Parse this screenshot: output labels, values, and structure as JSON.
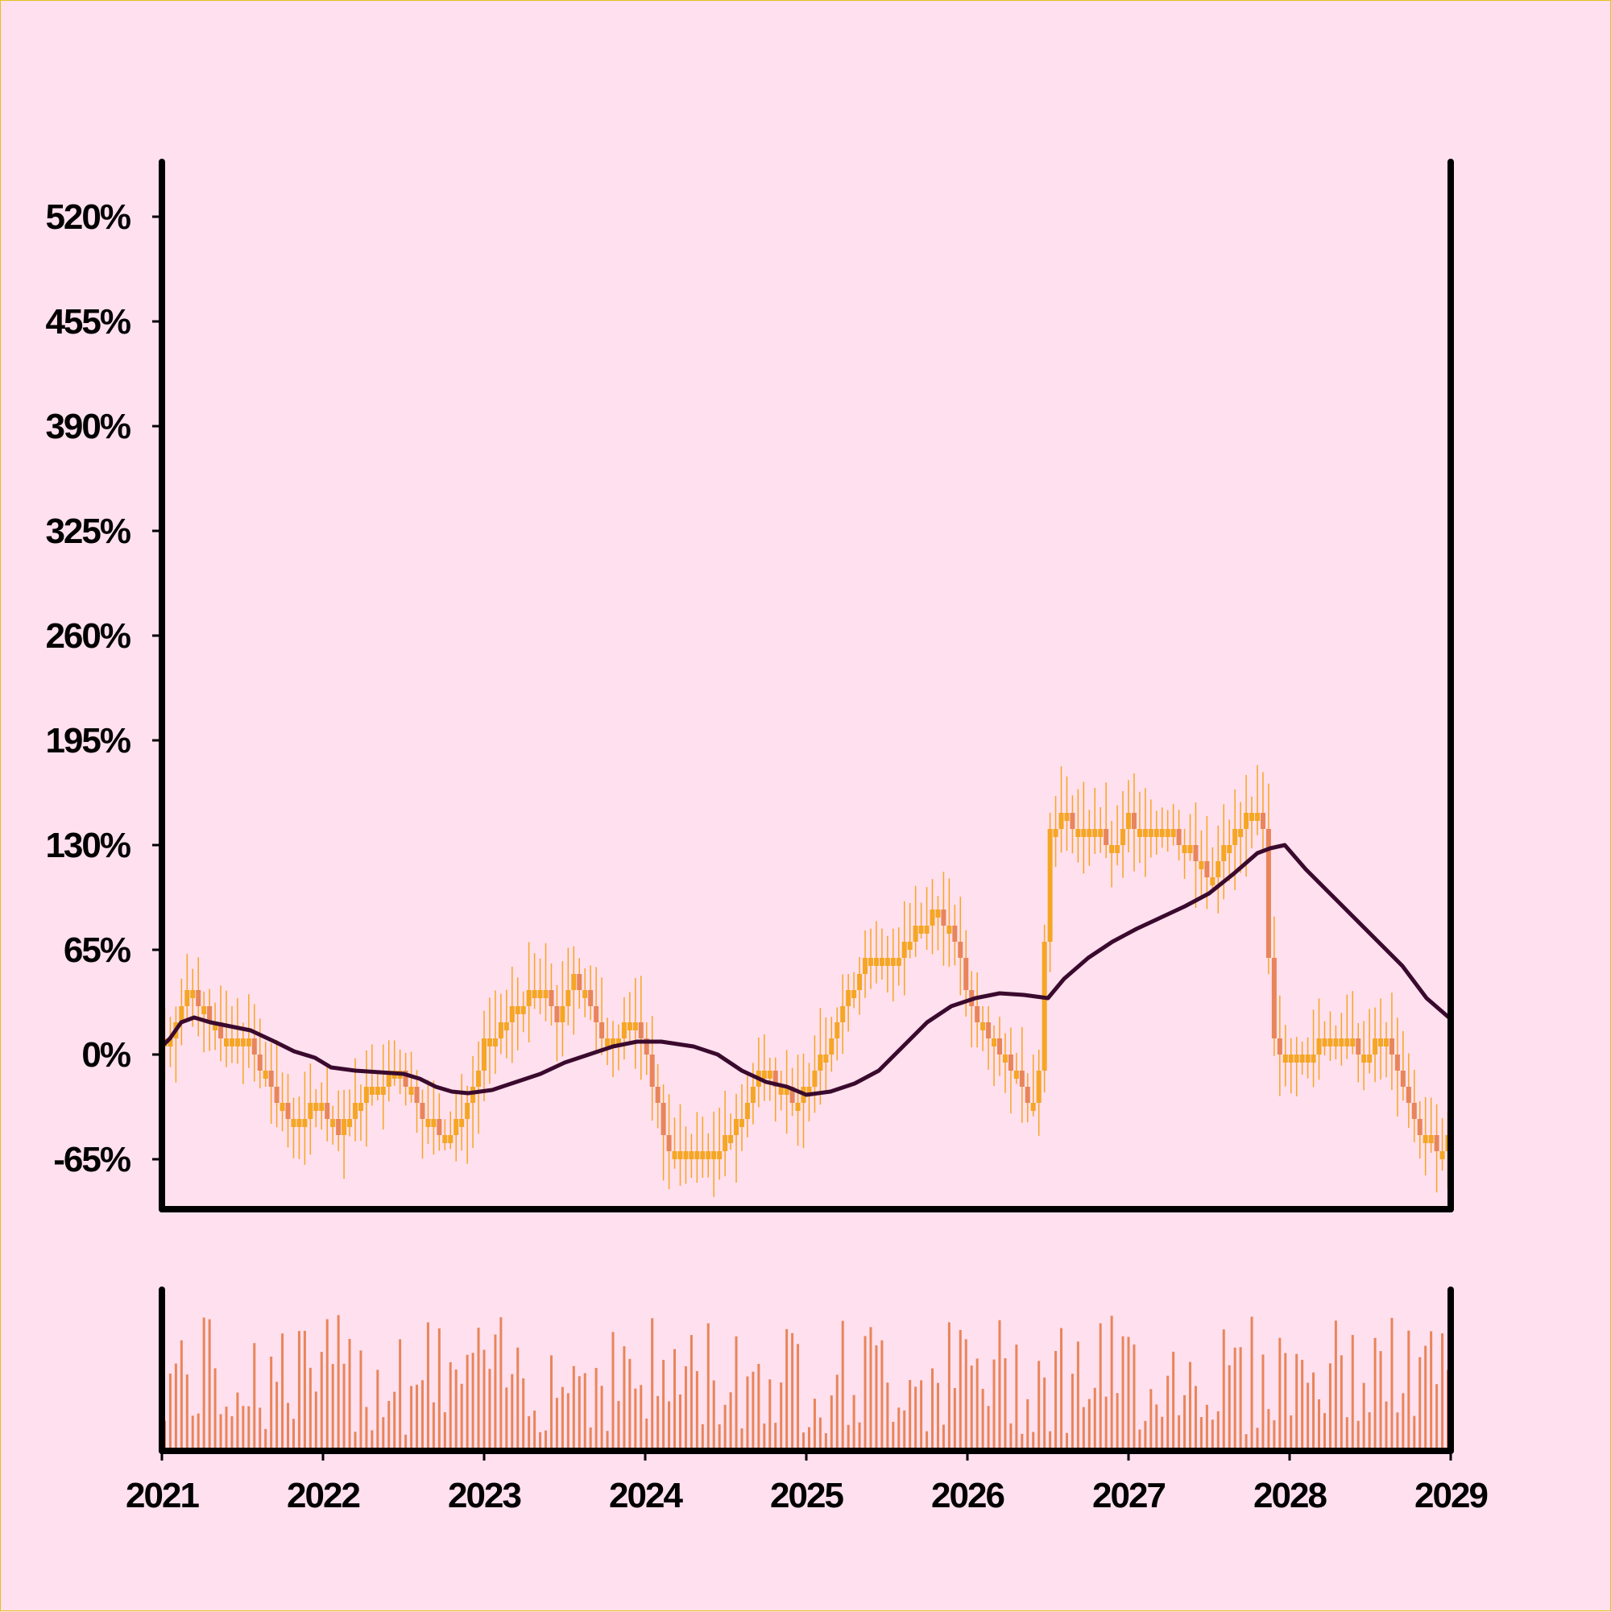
{
  "chart_data": {
    "type": "candlestick",
    "title": "",
    "xlabel": "",
    "ylabel": "",
    "ylim": [
      -95,
      555
    ],
    "y_ticks": [
      "-65%",
      "0%",
      "65%",
      "130%",
      "195%",
      "260%",
      "325%",
      "390%",
      "455%",
      "520%"
    ],
    "y_tick_values": [
      -65,
      0,
      65,
      130,
      195,
      260,
      325,
      390,
      455,
      520
    ],
    "x_range": [
      2021,
      2029
    ],
    "x_ticks": [
      "2021",
      "2022",
      "2023",
      "2024",
      "2025",
      "2026",
      "2027",
      "2028",
      "2029"
    ],
    "x_tick_values": [
      2021,
      2022,
      2023,
      2024,
      2025,
      2026,
      2027,
      2028,
      2029
    ],
    "series": [
      {
        "kind": "ohlc_close_approx",
        "color_up": "#f5a623",
        "color_down": "#e8855a",
        "points": [
          [
            2021.0,
            5
          ],
          [
            2021.08,
            20
          ],
          [
            2021.15,
            40
          ],
          [
            2021.25,
            30
          ],
          [
            2021.35,
            15
          ],
          [
            2021.45,
            5
          ],
          [
            2021.55,
            5
          ],
          [
            2021.62,
            -10
          ],
          [
            2021.72,
            -30
          ],
          [
            2021.82,
            -40
          ],
          [
            2021.92,
            -35
          ],
          [
            2022.0,
            -30
          ],
          [
            2022.1,
            -50
          ],
          [
            2022.2,
            -30
          ],
          [
            2022.3,
            -20
          ],
          [
            2022.4,
            -15
          ],
          [
            2022.5,
            -15
          ],
          [
            2022.6,
            -35
          ],
          [
            2022.7,
            -45
          ],
          [
            2022.75,
            -55
          ],
          [
            2022.85,
            -40
          ],
          [
            2022.95,
            -15
          ],
          [
            2023.0,
            5
          ],
          [
            2023.1,
            15
          ],
          [
            2023.2,
            30
          ],
          [
            2023.3,
            40
          ],
          [
            2023.4,
            35
          ],
          [
            2023.45,
            20
          ],
          [
            2023.5,
            40
          ],
          [
            2023.55,
            50
          ],
          [
            2023.65,
            35
          ],
          [
            2023.75,
            10
          ],
          [
            2023.85,
            15
          ],
          [
            2023.95,
            15
          ],
          [
            2024.0,
            0
          ],
          [
            2024.1,
            -40
          ],
          [
            2024.15,
            -60
          ],
          [
            2024.25,
            -60
          ],
          [
            2024.35,
            -60
          ],
          [
            2024.45,
            -60
          ],
          [
            2024.55,
            -45
          ],
          [
            2024.65,
            -25
          ],
          [
            2024.75,
            -5
          ],
          [
            2024.8,
            -15
          ],
          [
            2024.9,
            -25
          ],
          [
            2024.95,
            -30
          ],
          [
            2025.05,
            -10
          ],
          [
            2025.15,
            10
          ],
          [
            2025.25,
            35
          ],
          [
            2025.35,
            55
          ],
          [
            2025.45,
            65
          ],
          [
            2025.5,
            60
          ],
          [
            2025.6,
            65
          ],
          [
            2025.7,
            80
          ],
          [
            2025.8,
            90
          ],
          [
            2025.85,
            85
          ],
          [
            2025.95,
            60
          ],
          [
            2026.0,
            30
          ],
          [
            2026.1,
            15
          ],
          [
            2026.2,
            0
          ],
          [
            2026.3,
            -10
          ],
          [
            2026.4,
            -35
          ],
          [
            2026.45,
            -10
          ],
          [
            2026.5,
            140
          ],
          [
            2026.6,
            150
          ],
          [
            2026.7,
            140
          ],
          [
            2026.8,
            145
          ],
          [
            2026.9,
            125
          ],
          [
            2027.0,
            145
          ],
          [
            2027.1,
            140
          ],
          [
            2027.2,
            140
          ],
          [
            2027.3,
            135
          ],
          [
            2027.4,
            125
          ],
          [
            2027.5,
            110
          ],
          [
            2027.6,
            130
          ],
          [
            2027.7,
            145
          ],
          [
            2027.8,
            145
          ],
          [
            2027.85,
            140
          ],
          [
            2027.88,
            20
          ],
          [
            2027.95,
            -5
          ],
          [
            2028.05,
            -5
          ],
          [
            2028.15,
            5
          ],
          [
            2028.25,
            10
          ],
          [
            2028.35,
            15
          ],
          [
            2028.45,
            0
          ],
          [
            2028.55,
            10
          ],
          [
            2028.62,
            5
          ],
          [
            2028.7,
            -20
          ],
          [
            2028.8,
            -45
          ],
          [
            2028.9,
            -55
          ],
          [
            2028.95,
            -60
          ],
          [
            2029.0,
            -40
          ]
        ]
      },
      {
        "kind": "line",
        "color": "#3a0a2e",
        "points": [
          [
            2021.0,
            5
          ],
          [
            2021.05,
            10
          ],
          [
            2021.12,
            20
          ],
          [
            2021.2,
            23
          ],
          [
            2021.3,
            20
          ],
          [
            2021.4,
            18
          ],
          [
            2021.55,
            15
          ],
          [
            2021.7,
            8
          ],
          [
            2021.82,
            2
          ],
          [
            2021.95,
            -2
          ],
          [
            2022.05,
            -8
          ],
          [
            2022.2,
            -10
          ],
          [
            2022.35,
            -11
          ],
          [
            2022.5,
            -12
          ],
          [
            2022.6,
            -15
          ],
          [
            2022.7,
            -20
          ],
          [
            2022.8,
            -23
          ],
          [
            2022.9,
            -24
          ],
          [
            2023.05,
            -22
          ],
          [
            2023.2,
            -17
          ],
          [
            2023.35,
            -12
          ],
          [
            2023.5,
            -5
          ],
          [
            2023.65,
            0
          ],
          [
            2023.8,
            5
          ],
          [
            2023.95,
            8
          ],
          [
            2024.1,
            8
          ],
          [
            2024.3,
            5
          ],
          [
            2024.45,
            0
          ],
          [
            2024.6,
            -10
          ],
          [
            2024.75,
            -17
          ],
          [
            2024.88,
            -20
          ],
          [
            2025.0,
            -25
          ],
          [
            2025.15,
            -23
          ],
          [
            2025.3,
            -18
          ],
          [
            2025.45,
            -10
          ],
          [
            2025.6,
            5
          ],
          [
            2025.75,
            20
          ],
          [
            2025.9,
            30
          ],
          [
            2026.05,
            35
          ],
          [
            2026.2,
            38
          ],
          [
            2026.35,
            37
          ],
          [
            2026.5,
            35
          ],
          [
            2026.6,
            47
          ],
          [
            2026.75,
            60
          ],
          [
            2026.9,
            70
          ],
          [
            2027.05,
            78
          ],
          [
            2027.2,
            85
          ],
          [
            2027.35,
            92
          ],
          [
            2027.5,
            100
          ],
          [
            2027.65,
            112
          ],
          [
            2027.8,
            125
          ],
          [
            2027.88,
            128
          ],
          [
            2027.97,
            130
          ],
          [
            2028.1,
            115
          ],
          [
            2028.25,
            100
          ],
          [
            2028.4,
            85
          ],
          [
            2028.55,
            70
          ],
          [
            2028.7,
            55
          ],
          [
            2028.85,
            35
          ],
          [
            2029.0,
            22
          ]
        ]
      }
    ],
    "volume_series": {
      "color": "#e8855a",
      "note_scale": "relative"
    }
  }
}
